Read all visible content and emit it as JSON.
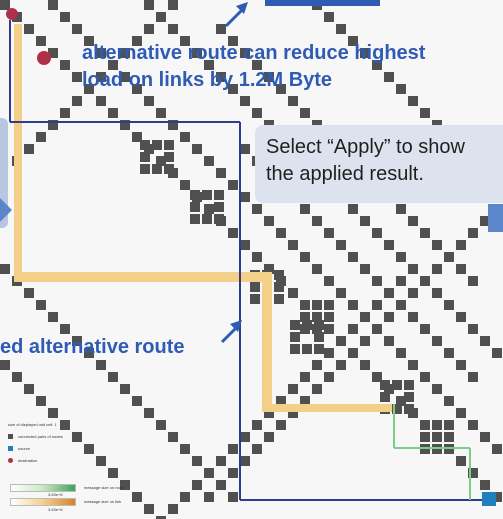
{
  "annotations": {
    "top_line1": "alternative route can reduce highest",
    "top_line2": "load on links by 1.2M Byte",
    "left": "ed alternative route"
  },
  "callout": {
    "line1": "Select “Apply” to show",
    "line2": "the applied result."
  },
  "legend": {
    "cell_size": "size of displayed unit cell: 1",
    "connected": "connected pairs of nodes",
    "source": "source",
    "destination": "destination",
    "route_label": "message size on route",
    "link_label": "message size on link",
    "route_max": "3.63e+6",
    "link_max": "3.63e+6"
  },
  "colors": {
    "cell": "#505050",
    "highlight_route": "#f2d08a",
    "alt_route": "#2c3e8c",
    "green_route": "#7fcf7f",
    "annotation": "#2f5bb5",
    "source": "#1f7fbf",
    "destination": "#b0304a"
  },
  "icons": {
    "source": "square-marker",
    "destination": "circle-marker"
  }
}
